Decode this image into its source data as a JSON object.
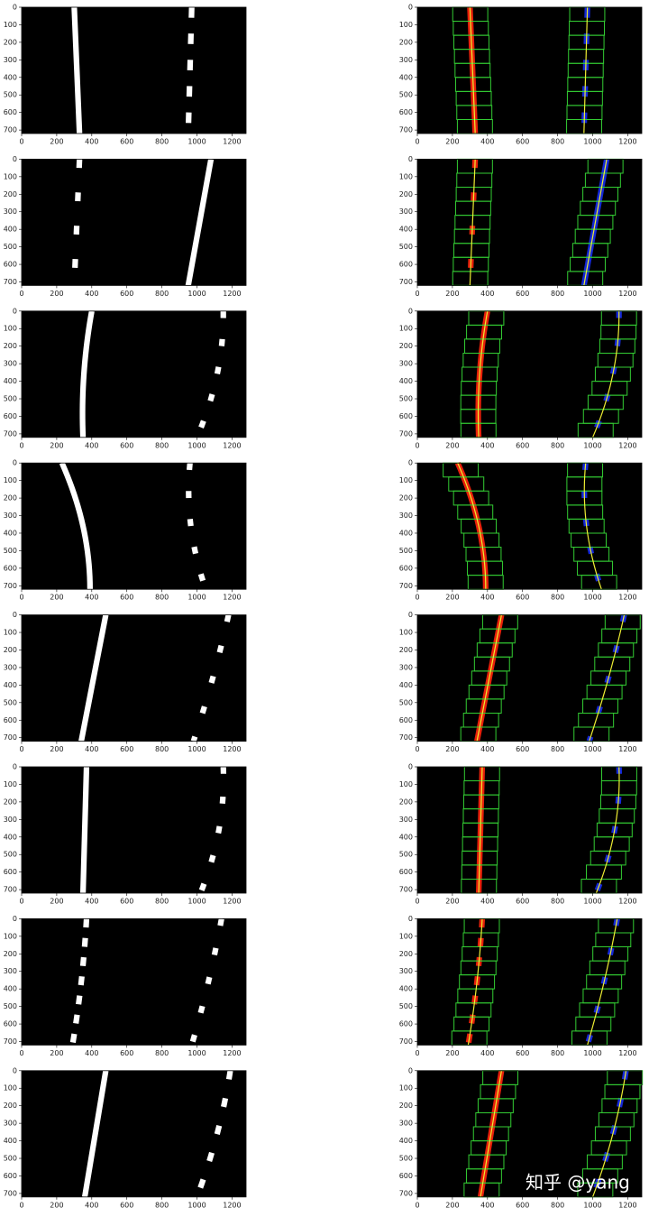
{
  "axes": {
    "xlim": [
      0,
      1280
    ],
    "ylim": [
      720,
      0
    ],
    "xticks": [
      0,
      200,
      400,
      600,
      800,
      1000,
      1200
    ],
    "yticks": [
      0,
      100,
      200,
      300,
      400,
      500,
      600,
      700
    ]
  },
  "watermark": "知乎  @yang"
}
